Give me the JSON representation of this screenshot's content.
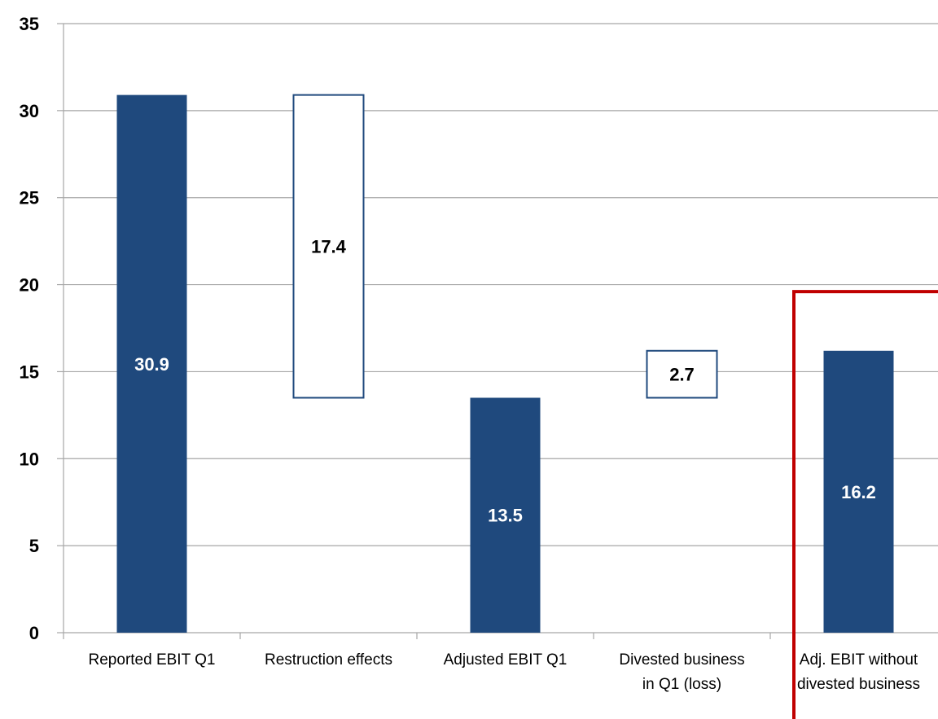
{
  "chart_data": {
    "type": "bar",
    "subtype": "waterfall",
    "title": "",
    "xlabel": "",
    "ylabel": "",
    "ylim": [
      0,
      35
    ],
    "yticks": [
      0,
      5,
      10,
      15,
      20,
      25,
      30,
      35
    ],
    "grid": true,
    "legend": "none",
    "categories": [
      [
        "Reported EBIT Q1"
      ],
      [
        "Restruction effects"
      ],
      [
        "Adjusted EBIT Q1"
      ],
      [
        "Divested business",
        "in Q1 (loss)"
      ],
      [
        "Adj. EBIT without",
        "divested business"
      ]
    ],
    "bars": [
      {
        "kind": "total",
        "base": 0,
        "top": 30.9,
        "label": "30.9"
      },
      {
        "kind": "step",
        "base": 13.5,
        "top": 30.9,
        "label": "17.4"
      },
      {
        "kind": "total",
        "base": 0,
        "top": 13.5,
        "label": "13.5"
      },
      {
        "kind": "step",
        "base": 13.5,
        "top": 16.2,
        "label": "2.7"
      },
      {
        "kind": "total",
        "base": 0,
        "top": 16.2,
        "label": "16.2"
      }
    ],
    "highlight_box": {
      "category_index": 4,
      "top_value": 19.6,
      "color": "#c00000"
    },
    "colors": {
      "total": "#1f497d",
      "step_fill": "#ffffff",
      "step_border": "#1f497d",
      "grid": "#a6a6a6",
      "axis": "#a6a6a6"
    }
  }
}
